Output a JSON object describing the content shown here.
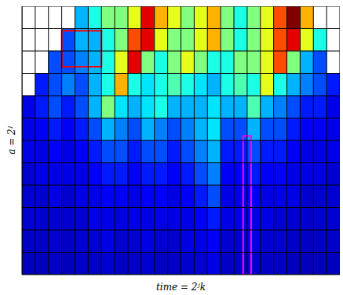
{
  "chart_data": {
    "type": "heatmap",
    "xlabel": "time = 2ʲk",
    "ylabel": "a = 2ʲ",
    "tick_labels": false,
    "grid": true,
    "xlim": [
      0,
      24
    ],
    "ylim": [
      0,
      12
    ],
    "xticks": [
      0,
      1,
      2,
      3,
      4,
      5,
      6,
      7,
      8,
      9,
      10,
      11,
      12,
      13,
      14,
      15,
      16,
      17,
      18,
      19,
      20,
      21,
      22,
      23,
      24
    ],
    "yticks": [
      0,
      1,
      2,
      3,
      4,
      5,
      6,
      7,
      8,
      9,
      10,
      11,
      12
    ],
    "zlim": [
      0,
      1
    ],
    "cells": [
      [
        null,
        null,
        null,
        null,
        0.3,
        0.4,
        0.5,
        0.5,
        0.6,
        0.9,
        0.7,
        0.6,
        0.5,
        0.6,
        0.7,
        0.5,
        0.4,
        0.5,
        0.6,
        0.8,
        1.0,
        0.7,
        null,
        null
      ],
      [
        null,
        null,
        null,
        0.2,
        0.3,
        0.3,
        0.4,
        0.5,
        0.8,
        0.9,
        0.6,
        0.5,
        0.5,
        0.6,
        0.7,
        0.5,
        0.4,
        0.5,
        0.6,
        0.8,
        0.9,
        0.6,
        0.4,
        null
      ],
      [
        null,
        null,
        0.2,
        0.2,
        0.25,
        0.3,
        0.4,
        0.6,
        0.9,
        0.5,
        0.4,
        0.5,
        0.6,
        0.5,
        0.4,
        0.4,
        0.5,
        0.5,
        0.6,
        0.8,
        0.5,
        0.3,
        0.2,
        null
      ],
      [
        null,
        0.15,
        0.2,
        0.25,
        0.2,
        0.3,
        0.4,
        0.7,
        0.4,
        0.35,
        0.4,
        0.45,
        0.4,
        0.35,
        0.3,
        0.4,
        0.45,
        0.4,
        0.6,
        0.4,
        0.3,
        0.25,
        0.2,
        0.15
      ],
      [
        0.1,
        0.15,
        0.2,
        0.15,
        0.2,
        0.3,
        0.5,
        0.35,
        0.3,
        0.35,
        0.4,
        0.3,
        0.3,
        0.3,
        0.35,
        0.3,
        0.3,
        0.45,
        0.3,
        0.25,
        0.2,
        0.15,
        0.15,
        0.1
      ],
      [
        0.1,
        0.12,
        0.15,
        0.12,
        0.15,
        0.2,
        0.3,
        0.25,
        0.2,
        0.3,
        0.25,
        0.2,
        0.25,
        0.3,
        0.35,
        0.2,
        0.2,
        0.3,
        0.2,
        0.2,
        0.15,
        0.12,
        0.12,
        0.1
      ],
      [
        0.1,
        0.1,
        0.12,
        0.1,
        0.12,
        0.15,
        0.2,
        0.2,
        0.15,
        0.2,
        0.2,
        0.15,
        0.2,
        0.25,
        0.3,
        0.15,
        0.15,
        0.2,
        0.15,
        0.15,
        0.12,
        0.1,
        0.1,
        0.1
      ],
      [
        0.08,
        0.1,
        0.1,
        0.1,
        0.1,
        0.12,
        0.15,
        0.15,
        0.12,
        0.15,
        0.15,
        0.12,
        0.15,
        0.2,
        0.25,
        0.12,
        0.12,
        0.15,
        0.12,
        0.12,
        0.1,
        0.1,
        0.1,
        0.08
      ],
      [
        0.08,
        0.08,
        0.1,
        0.08,
        0.1,
        0.1,
        0.12,
        0.12,
        0.1,
        0.12,
        0.12,
        0.1,
        0.12,
        0.15,
        0.2,
        0.1,
        0.1,
        0.12,
        0.1,
        0.1,
        0.1,
        0.08,
        0.08,
        0.08
      ],
      [
        0.08,
        0.08,
        0.08,
        0.08,
        0.08,
        0.1,
        0.1,
        0.1,
        0.1,
        0.1,
        0.1,
        0.1,
        0.1,
        0.12,
        0.15,
        0.1,
        0.1,
        0.1,
        0.1,
        0.08,
        0.08,
        0.08,
        0.08,
        0.08
      ],
      [
        0.07,
        0.07,
        0.08,
        0.07,
        0.08,
        0.08,
        0.1,
        0.08,
        0.08,
        0.1,
        0.08,
        0.08,
        0.1,
        0.1,
        0.12,
        0.08,
        0.08,
        0.1,
        0.08,
        0.08,
        0.07,
        0.07,
        0.07,
        0.07
      ],
      [
        0.06,
        0.06,
        0.07,
        0.06,
        0.07,
        0.07,
        0.08,
        0.07,
        0.07,
        0.08,
        0.07,
        0.07,
        0.08,
        0.08,
        0.1,
        0.07,
        0.07,
        0.08,
        0.07,
        0.07,
        0.06,
        0.06,
        0.06,
        0.06
      ]
    ],
    "highlights": [
      {
        "x": [
          3,
          6
        ],
        "y": [
          9.3,
          10.9
        ],
        "color": "#ff0000"
      },
      {
        "x": [
          16.7,
          17.3
        ],
        "y": [
          0,
          6.2
        ],
        "color": "#ff00ff"
      }
    ]
  }
}
